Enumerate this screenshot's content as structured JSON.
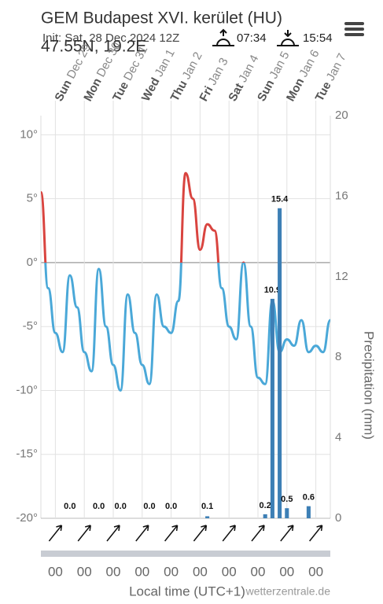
{
  "header": {
    "title": "GEM Budapest XVI. kerület (HU)",
    "init": "Init: Sat, 28 Dec 2024 12Z",
    "coords": "47.55N, 19.2E",
    "sunrise": "07:34",
    "sunset": "15:54"
  },
  "chart_data": {
    "type": "line",
    "categories": [
      null,
      null,
      "Sun Dec 29",
      null,
      null,
      null,
      "Mon Dec 30",
      null,
      null,
      null,
      "Tue Dec 31",
      null,
      null,
      null,
      "Wed Jan 1",
      null,
      null,
      null,
      "Thu Jan 2",
      null,
      null,
      null,
      "Fri Jan 3",
      null,
      null,
      null,
      "Sat Jan 4",
      null,
      null,
      null,
      "Sun Jan 5",
      null,
      null,
      null,
      "Mon Jan 6",
      null,
      null,
      null,
      "Tue Jan 7",
      null,
      null
    ],
    "hour_labels": [
      null,
      null,
      "00",
      null,
      null,
      null,
      "00",
      null,
      null,
      null,
      "00",
      null,
      null,
      null,
      "00",
      null,
      null,
      null,
      "00",
      null,
      null,
      null,
      "00",
      null,
      null,
      null,
      "00",
      null,
      null,
      null,
      "00",
      null,
      null,
      null,
      "00",
      null,
      null,
      null,
      "00",
      null,
      null
    ],
    "series": [
      {
        "color_above": "#d9443f",
        "color": "#4aa8d8",
        "values": [
          5.5,
          -2,
          -5.5,
          -7,
          -1,
          -3.5,
          -7,
          -8.5,
          -0.5,
          -5,
          -8,
          -10,
          -2.5,
          -5.5,
          -8,
          -9.5,
          -2.5,
          -5,
          -5.5,
          -3,
          7,
          5,
          1,
          3,
          2.5,
          -2,
          -5,
          -6,
          0,
          -5,
          -9,
          -9.5,
          -3,
          -7,
          -6,
          -6.5,
          -4.5,
          -7,
          -6.5,
          -7,
          -4.5
        ]
      },
      {
        "type": "bar",
        "axis": "y2",
        "color": "#3d7fb5",
        "values": [
          null,
          null,
          null,
          null,
          0,
          null,
          null,
          null,
          0,
          null,
          null,
          0,
          null,
          null,
          null,
          0,
          null,
          null,
          0,
          null,
          null,
          null,
          null,
          0.1,
          null,
          null,
          null,
          null,
          null,
          null,
          null,
          0.2,
          10.9,
          15.4,
          0.5,
          null,
          null,
          0.6,
          null,
          null,
          null
        ],
        "value_labels": [
          null,
          null,
          null,
          null,
          "0.0",
          null,
          null,
          null,
          "0.0",
          null,
          null,
          "0.0",
          null,
          null,
          null,
          "0.0",
          null,
          null,
          "0.0",
          null,
          null,
          null,
          null,
          "0.1",
          null,
          null,
          null,
          null,
          null,
          null,
          null,
          "0.2",
          "10.9",
          "15.4",
          "0.5",
          null,
          null,
          "0.6",
          null,
          null,
          null
        ]
      }
    ],
    "ylim": [
      -20,
      11.5
    ],
    "yticks": [
      {
        "value": -20,
        "label": "-20°"
      },
      {
        "value": -15,
        "label": "-15°"
      },
      {
        "value": -10,
        "label": "-10°"
      },
      {
        "value": -5,
        "label": "-5°"
      },
      {
        "value": 0,
        "label": "0°"
      },
      {
        "value": 5,
        "label": "5°"
      },
      {
        "value": 10,
        "label": "10°"
      }
    ],
    "y2lim": [
      0,
      20
    ],
    "y2ticks": [
      0,
      4,
      8,
      12,
      16,
      20
    ],
    "y2label": "Precipitation (mm)",
    "xlabel": "Local time (UTC+1)",
    "credit": "wetterzentrale.de",
    "grid": true
  }
}
